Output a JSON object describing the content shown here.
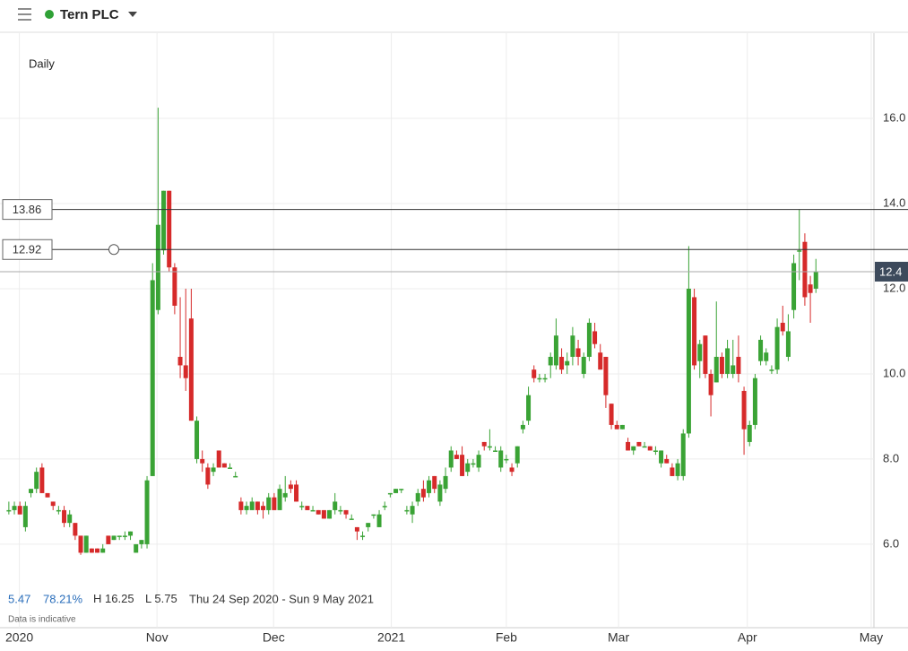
{
  "chart_data": {
    "type": "candlestick",
    "title": "Tern PLC",
    "interval": "Daily",
    "change": 5.47,
    "change_percent": {
      "value": 78.21,
      "label": "78.21%"
    },
    "range_stats": [
      {
        "label": "H",
        "value": 16.25
      },
      {
        "label": "L",
        "value": 5.75
      }
    ],
    "date_range": "Thu 24 Sep 2020 - Sun 9 May 2021",
    "note": "Data is indicative",
    "up_color": "#3aa335",
    "down_color": "#d62a2a",
    "grid": true,
    "price_lines": [
      13.86,
      12.92
    ],
    "last_price": 12.4,
    "xlim": [
      -1.6,
      156.5
    ],
    "xticks": [
      {
        "value": 1.9,
        "label": "2020"
      },
      {
        "value": 26.8,
        "label": "Nov"
      },
      {
        "value": 47.9,
        "label": "Dec"
      },
      {
        "value": 69.2,
        "label": "2021"
      },
      {
        "value": 90,
        "label": "Feb"
      },
      {
        "value": 110.3,
        "label": "Mar"
      },
      {
        "value": 133.6,
        "label": "Apr"
      },
      {
        "value": 156,
        "label": "May"
      }
    ],
    "ylim": [
      4.04,
      18
    ],
    "yticks": [
      {
        "value": 6,
        "label": "6.0"
      },
      {
        "value": 8,
        "label": "8.0"
      },
      {
        "value": 10,
        "label": "10.0"
      },
      {
        "value": 12,
        "label": "12.0"
      },
      {
        "value": 14,
        "label": "14.0"
      },
      {
        "value": 16,
        "label": "16.0"
      }
    ],
    "x": [
      0,
      1,
      2,
      3,
      4,
      5,
      6,
      7,
      8,
      9,
      10,
      11,
      12,
      13,
      14,
      15,
      16,
      17,
      18,
      19,
      20,
      21,
      22,
      23,
      24,
      25,
      26,
      27,
      28,
      29,
      30,
      31,
      32,
      33,
      34,
      35,
      36,
      37,
      38,
      39,
      40,
      41,
      42,
      43,
      44,
      45,
      46,
      47,
      48,
      49,
      50,
      51,
      52,
      53,
      54,
      55,
      56,
      57,
      58,
      59,
      60,
      61,
      62,
      63,
      64,
      65,
      66,
      67,
      68,
      69,
      70,
      71,
      72,
      73,
      74,
      75,
      76,
      77,
      78,
      79,
      80,
      81,
      82,
      83,
      84,
      85,
      86,
      87,
      88,
      89,
      90,
      91,
      92,
      93,
      94,
      95,
      96,
      97,
      98,
      99,
      100,
      101,
      102,
      103,
      104,
      105,
      106,
      107,
      108,
      109,
      110,
      111,
      112,
      113,
      114,
      115,
      116,
      117,
      118,
      119,
      120,
      121,
      122,
      123,
      124,
      125,
      126,
      127,
      128,
      129,
      130,
      131,
      132,
      133,
      134,
      135,
      136,
      137,
      138,
      139,
      140,
      141,
      142,
      143,
      144,
      145,
      146
    ],
    "open": [
      6.8,
      6.8,
      6.9,
      6.4,
      7.2,
      7.3,
      7.8,
      7.2,
      7.0,
      6.8,
      6.8,
      6.5,
      6.5,
      6.2,
      5.8,
      5.9,
      5.9,
      5.8,
      6.2,
      6.1,
      6.2,
      6.2,
      6.2,
      5.8,
      6.0,
      6.0,
      7.6,
      11.5,
      12.9,
      14.3,
      12.5,
      10.4,
      10.2,
      11.3,
      8.0,
      8.0,
      7.8,
      7.7,
      8.2,
      7.9,
      7.8,
      7.6,
      7.0,
      6.8,
      6.8,
      7.0,
      6.9,
      6.8,
      7.1,
      6.8,
      7.1,
      7.4,
      7.4,
      6.9,
      6.9,
      6.8,
      6.8,
      6.8,
      6.6,
      6.8,
      6.8,
      6.8,
      6.6,
      6.4,
      6.2,
      6.4,
      6.7,
      6.4,
      6.9,
      7.2,
      7.2,
      7.3,
      6.8,
      6.7,
      7.0,
      7.3,
      7.2,
      7.6,
      7.0,
      7.3,
      7.8,
      8.1,
      8.1,
      7.7,
      7.9,
      7.8,
      8.4,
      8.3,
      8.2,
      7.8,
      8.0,
      7.8,
      7.9,
      8.7,
      8.9,
      10.1,
      9.9,
      9.9,
      10.2,
      10.2,
      10.4,
      10.2,
      10.4,
      10.6,
      10.0,
      10.4,
      11.0,
      10.5,
      10.4,
      9.3,
      8.8,
      8.7,
      8.4,
      8.2,
      8.4,
      8.3,
      8.3,
      8.2,
      7.9,
      8.0,
      7.8,
      7.6,
      7.6,
      8.6,
      11.8,
      10.3,
      10.9,
      10.0,
      9.8,
      10.4,
      10.0,
      10.0,
      10.4,
      9.6,
      8.4,
      8.8,
      10.3,
      10.3,
      10.1,
      10.1,
      11.2,
      10.4,
      11.5,
      12.9,
      13.1,
      12.1,
      12.0
    ],
    "high": [
      7.0,
      7.0,
      7.0,
      7.0,
      7.3,
      7.8,
      7.9,
      7.2,
      7.0,
      6.9,
      6.9,
      6.8,
      6.5,
      6.2,
      6.2,
      5.9,
      5.9,
      6.0,
      6.2,
      6.2,
      6.2,
      6.3,
      6.3,
      6.0,
      6.1,
      7.6,
      12.6,
      16.25,
      14.3,
      14.3,
      12.6,
      11.8,
      12.0,
      12.0,
      9.0,
      8.2,
      7.9,
      7.9,
      8.2,
      7.9,
      7.9,
      7.7,
      7.1,
      7.0,
      7.1,
      7.0,
      7.0,
      7.2,
      7.2,
      7.4,
      7.6,
      7.5,
      7.5,
      7.0,
      6.9,
      6.9,
      6.8,
      6.8,
      6.8,
      7.2,
      6.9,
      6.8,
      6.7,
      6.4,
      6.3,
      6.5,
      6.7,
      6.8,
      7.0,
      7.2,
      7.3,
      7.3,
      6.9,
      7.0,
      7.3,
      7.5,
      7.6,
      7.6,
      7.5,
      7.8,
      8.3,
      8.2,
      8.3,
      8.0,
      8.0,
      8.2,
      8.4,
      8.7,
      8.3,
      8.3,
      8.1,
      7.9,
      8.3,
      8.9,
      9.7,
      10.2,
      10.0,
      10.0,
      10.5,
      11.3,
      10.6,
      10.5,
      11.1,
      10.8,
      10.5,
      11.3,
      11.2,
      10.7,
      10.4,
      9.3,
      8.9,
      8.8,
      8.5,
      8.3,
      8.4,
      8.4,
      8.3,
      8.3,
      8.2,
      8.1,
      7.9,
      8.0,
      8.7,
      13.0,
      12.0,
      10.8,
      10.9,
      10.1,
      11.7,
      10.5,
      10.8,
      10.8,
      10.9,
      9.7,
      8.9,
      10.0,
      10.9,
      10.6,
      10.2,
      11.3,
      11.6,
      11.4,
      12.8,
      13.86,
      13.3,
      12.3,
      12.7
    ],
    "low": [
      6.7,
      6.7,
      6.7,
      6.3,
      7.1,
      7.2,
      7.2,
      7.1,
      6.8,
      6.7,
      6.4,
      6.4,
      6.1,
      5.75,
      5.8,
      5.8,
      5.8,
      5.8,
      6.0,
      6.1,
      6.1,
      6.1,
      6.1,
      5.8,
      5.9,
      5.9,
      7.6,
      11.4,
      12.8,
      12.4,
      11.4,
      9.9,
      9.6,
      8.9,
      7.9,
      7.7,
      7.3,
      7.6,
      7.8,
      7.8,
      7.8,
      7.6,
      6.7,
      6.7,
      6.8,
      6.7,
      6.6,
      6.7,
      6.8,
      6.8,
      7.0,
      7.2,
      7.0,
      6.8,
      6.8,
      6.8,
      6.7,
      6.6,
      6.6,
      6.7,
      6.7,
      6.6,
      6.6,
      6.1,
      6.1,
      6.3,
      6.6,
      6.4,
      6.8,
      7.1,
      7.2,
      7.2,
      6.7,
      6.5,
      6.9,
      7.0,
      7.1,
      7.2,
      6.9,
      7.2,
      7.7,
      8.0,
      7.6,
      7.6,
      7.8,
      7.7,
      8.2,
      8.2,
      8.2,
      7.7,
      7.9,
      7.6,
      7.8,
      8.6,
      8.8,
      9.8,
      9.8,
      9.8,
      9.9,
      10.1,
      10.0,
      10.0,
      10.2,
      10.2,
      9.9,
      10.3,
      10.6,
      10.1,
      9.2,
      8.7,
      8.7,
      8.7,
      8.2,
      8.1,
      8.3,
      8.3,
      8.2,
      8.1,
      7.8,
      7.9,
      7.6,
      7.5,
      7.5,
      8.5,
      10.1,
      9.9,
      9.9,
      9.0,
      9.8,
      9.9,
      9.9,
      9.9,
      9.8,
      8.1,
      8.3,
      8.7,
      10.2,
      10.2,
      10.0,
      10.0,
      10.9,
      10.3,
      11.3,
      12.2,
      11.6,
      11.2,
      11.9
    ],
    "close": [
      6.8,
      6.9,
      6.7,
      6.9,
      7.3,
      7.7,
      7.2,
      7.1,
      6.9,
      6.8,
      6.5,
      6.7,
      6.2,
      5.8,
      6.2,
      5.8,
      5.8,
      5.9,
      6.0,
      6.2,
      6.2,
      6.2,
      6.3,
      6.0,
      6.1,
      7.5,
      12.2,
      13.5,
      14.3,
      12.5,
      11.6,
      10.2,
      9.9,
      8.9,
      8.9,
      7.9,
      7.4,
      7.8,
      7.8,
      7.8,
      7.8,
      7.6,
      6.8,
      6.9,
      7.0,
      6.8,
      6.8,
      7.1,
      6.8,
      7.3,
      7.2,
      7.3,
      7.0,
      6.9,
      6.8,
      6.8,
      6.7,
      6.6,
      6.8,
      7.0,
      6.8,
      6.7,
      6.6,
      6.3,
      6.2,
      6.5,
      6.7,
      6.7,
      6.9,
      7.2,
      7.3,
      7.3,
      6.8,
      6.9,
      7.2,
      7.1,
      7.5,
      7.3,
      7.4,
      7.6,
      8.2,
      8.0,
      7.6,
      7.9,
      7.9,
      8.1,
      8.3,
      8.3,
      8.2,
      8.2,
      8.0,
      7.7,
      8.3,
      8.8,
      9.5,
      9.9,
      9.9,
      9.9,
      10.4,
      10.9,
      10.1,
      10.3,
      10.9,
      10.4,
      10.4,
      11.2,
      10.7,
      10.1,
      9.5,
      8.8,
      8.7,
      8.8,
      8.2,
      8.3,
      8.3,
      8.3,
      8.2,
      8.2,
      8.2,
      7.9,
      7.6,
      7.9,
      8.6,
      12.0,
      10.2,
      10.7,
      10.0,
      9.5,
      10.4,
      10.0,
      10.6,
      10.2,
      10.0,
      8.7,
      8.8,
      9.9,
      10.8,
      10.5,
      10.1,
      11.1,
      11.0,
      11.0,
      12.6,
      12.9,
      11.8,
      11.9,
      12.4
    ]
  }
}
